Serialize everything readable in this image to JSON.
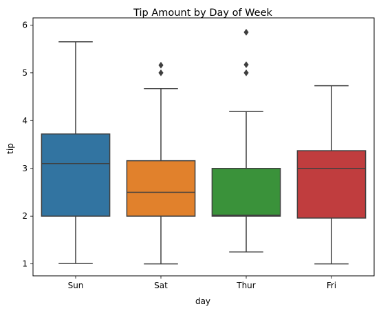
{
  "chart_data": {
    "type": "box",
    "title": "Tip Amount by Day of Week",
    "xlabel": "day",
    "ylabel": "tip",
    "categories": [
      "Sun",
      "Sat",
      "Thur",
      "Fri"
    ],
    "colors": [
      "#3274a1",
      "#e1812c",
      "#3a923a",
      "#c03d3e"
    ],
    "edge_color": "#3f3f3f",
    "ylim": [
      0.75,
      6.15
    ],
    "yticks": [
      1,
      2,
      3,
      4,
      5,
      6
    ],
    "grid": false,
    "boxes": [
      {
        "category": "Sun",
        "whisker_low": 1.01,
        "q1": 2.0,
        "median": 3.1,
        "q3": 3.72,
        "whisker_high": 5.65,
        "outliers": []
      },
      {
        "category": "Sat",
        "whisker_low": 1.0,
        "q1": 2.0,
        "median": 2.5,
        "q3": 3.16,
        "whisker_high": 4.67,
        "outliers": [
          5.0,
          5.16
        ]
      },
      {
        "category": "Thur",
        "whisker_low": 1.25,
        "q1": 2.0,
        "median": 2.02,
        "q3": 3.0,
        "whisker_high": 4.19,
        "outliers": [
          5.0,
          5.17,
          5.85
        ]
      },
      {
        "category": "Fri",
        "whisker_low": 1.0,
        "q1": 1.96,
        "median": 3.0,
        "q3": 3.37,
        "whisker_high": 4.73,
        "outliers": []
      }
    ]
  }
}
